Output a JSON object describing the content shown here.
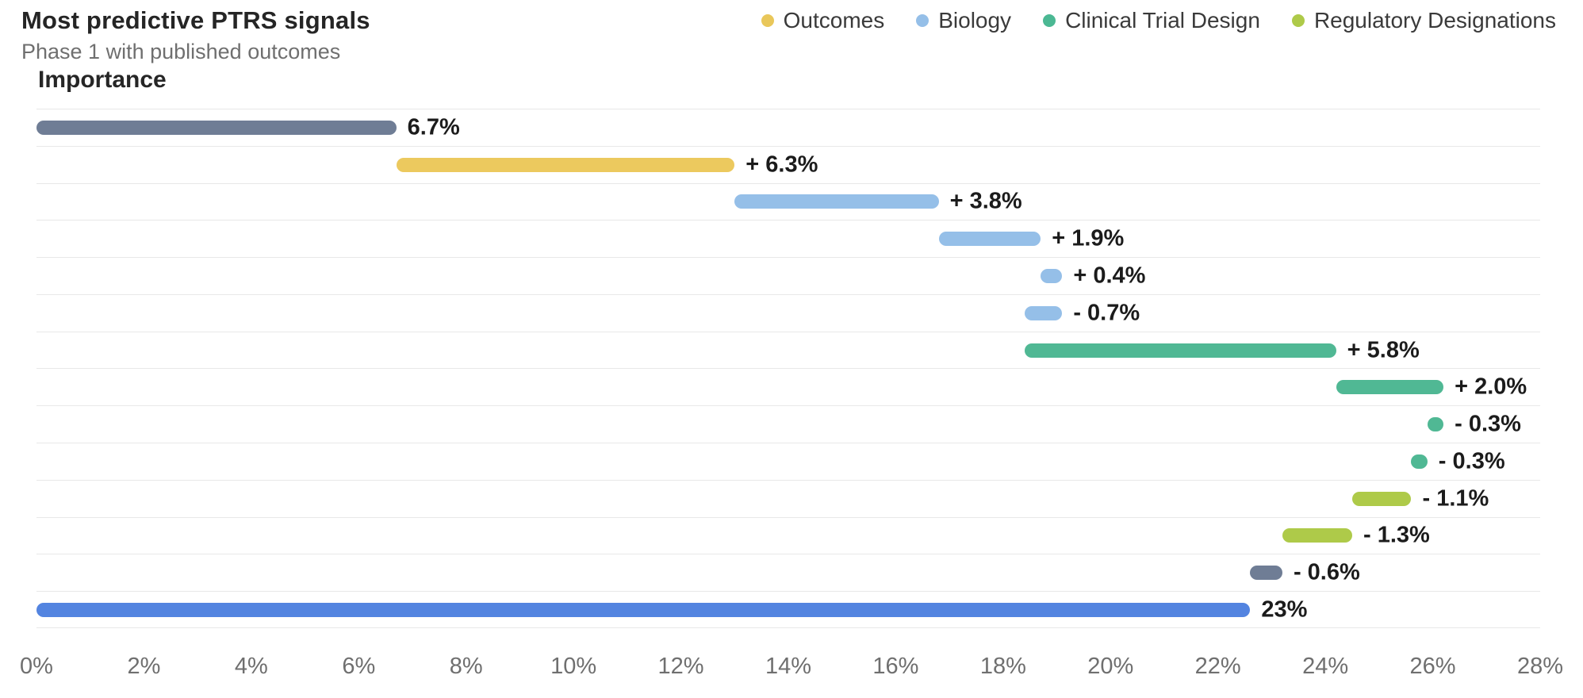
{
  "header": {
    "title": "Most predictive PTRS signals",
    "subtitle": "Phase 1 with published outcomes"
  },
  "legend": [
    {
      "label": "Outcomes",
      "color": "#e9c75a"
    },
    {
      "label": "Biology",
      "color": "#95bfe8"
    },
    {
      "label": "Clinical Trial Design",
      "color": "#4bb893"
    },
    {
      "label": "Regulatory Designations",
      "color": "#aeca49"
    }
  ],
  "chart_data": {
    "type": "bar",
    "subtype": "waterfall",
    "title": "Most predictive PTRS signals",
    "subtitle": "Phase 1 with published outcomes",
    "y_axis_title": "Importance",
    "xlabel": "",
    "ylabel": "Importance",
    "xlim": [
      0,
      28
    ],
    "grid": "horizontal-row-separators",
    "legend_position": "top-right",
    "x_ticks": [
      {
        "label": "0%",
        "value": 0
      },
      {
        "label": "2%",
        "value": 2
      },
      {
        "label": "4%",
        "value": 4
      },
      {
        "label": "6%",
        "value": 6
      },
      {
        "label": "8%",
        "value": 8
      },
      {
        "label": "10%",
        "value": 10
      },
      {
        "label": "12%",
        "value": 12
      },
      {
        "label": "14%",
        "value": 14
      },
      {
        "label": "16%",
        "value": 16
      },
      {
        "label": "18%",
        "value": 18
      },
      {
        "label": "20%",
        "value": 20
      },
      {
        "label": "22%",
        "value": 22
      },
      {
        "label": "24%",
        "value": 24
      },
      {
        "label": "26%",
        "value": 26
      },
      {
        "label": "28%",
        "value": 28
      }
    ],
    "colors": {
      "base": "#6f7d95",
      "Outcomes": "#ecc95e",
      "Biology": "#95bfe8",
      "Clinical Trial Design": "#50b894",
      "Regulatory Designations": "#aeca49",
      "total": "#5384e0"
    },
    "rows": [
      {
        "label": "6.7%",
        "value": 6.7,
        "kind": "base",
        "category": "base"
      },
      {
        "label": "+ 6.3%",
        "value": 6.3,
        "kind": "delta",
        "category": "Outcomes"
      },
      {
        "label": "+ 3.8%",
        "value": 3.8,
        "kind": "delta",
        "category": "Biology"
      },
      {
        "label": "+ 1.9%",
        "value": 1.9,
        "kind": "delta",
        "category": "Biology"
      },
      {
        "label": "+ 0.4%",
        "value": 0.4,
        "kind": "delta",
        "category": "Biology"
      },
      {
        "label": "- 0.7%",
        "value": -0.7,
        "kind": "delta",
        "category": "Biology"
      },
      {
        "label": "+ 5.8%",
        "value": 5.8,
        "kind": "delta",
        "category": "Clinical Trial Design"
      },
      {
        "label": "+ 2.0%",
        "value": 2.0,
        "kind": "delta",
        "category": "Clinical Trial Design"
      },
      {
        "label": "- 0.3%",
        "value": -0.3,
        "kind": "delta",
        "category": "Clinical Trial Design"
      },
      {
        "label": "- 0.3%",
        "value": -0.3,
        "kind": "delta",
        "category": "Clinical Trial Design"
      },
      {
        "label": "- 1.1%",
        "value": -1.1,
        "kind": "delta",
        "category": "Regulatory Designations"
      },
      {
        "label": "- 1.3%",
        "value": -1.3,
        "kind": "delta",
        "category": "Regulatory Designations"
      },
      {
        "label": "- 0.6%",
        "value": -0.6,
        "kind": "delta",
        "category": "base"
      },
      {
        "label": "23%",
        "value": 23,
        "kind": "total",
        "category": "total"
      }
    ]
  }
}
